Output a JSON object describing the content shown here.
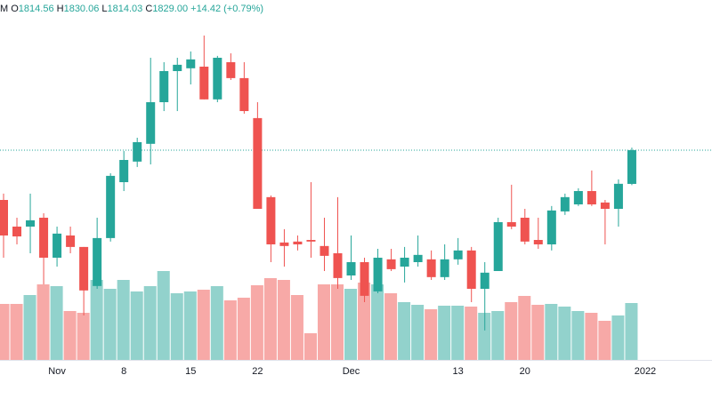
{
  "header": {
    "symbol_fragment": "M",
    "open_label": "O",
    "open": "1814.56",
    "high_label": "H",
    "high": "1830.06",
    "low_label": "L",
    "low": "1814.03",
    "close_label": "C",
    "close": "1829.00",
    "change": "+14.42 (+0.79%)"
  },
  "chart_data": {
    "type": "candlestick",
    "open": [
      1807.7,
      1796.3,
      1796.3,
      1800.1,
      1783.0,
      1792.5,
      1787.6,
      1770.9,
      1791.4,
      1815.3,
      1824.1,
      1831.7,
      1849.5,
      1862.8,
      1864.0,
      1864.7,
      1850.7,
      1866.6,
      1859.8,
      1842.7,
      1808.9,
      1789.5,
      1789.9,
      1790.6,
      1788.0,
      1784.9,
      1775.4,
      1781.1,
      1768.6,
      1782.3,
      1779.2,
      1781.1,
      1782.3,
      1774.7,
      1782.3,
      1786.1,
      1769.7,
      1777.3,
      1798.2,
      1800.1,
      1790.6,
      1788.7,
      1802.8,
      1805.8,
      1811.5,
      1806.6,
      1803.9,
      1814.56
    ],
    "high": [
      1810.4,
      1800.1,
      1810.4,
      1802.0,
      1796.3,
      1796.3,
      1787.6,
      1800.1,
      1819.1,
      1828.6,
      1834.3,
      1868.5,
      1866.6,
      1868.5,
      1871.2,
      1878.0,
      1869.3,
      1870.4,
      1866.6,
      1849.5,
      1809.6,
      1795.2,
      1792.5,
      1815.3,
      1800.1,
      1808.9,
      1792.5,
      1783.0,
      1786.8,
      1786.8,
      1787.6,
      1792.5,
      1786.1,
      1788.7,
      1791.4,
      1787.6,
      1781.1,
      1800.1,
      1814.2,
      1803.9,
      1800.1,
      1805.1,
      1810.4,
      1812.7,
      1820.3,
      1807.7,
      1816.5,
      1830.06
    ],
    "low": [
      1783.0,
      1788.7,
      1784.9,
      1771.6,
      1779.2,
      1784.9,
      1758.3,
      1769.7,
      1789.9,
      1811.5,
      1821.8,
      1822.9,
      1845.7,
      1845.7,
      1857.1,
      1850.7,
      1849.5,
      1859.0,
      1844.6,
      1803.9,
      1781.1,
      1779.2,
      1786.1,
      1783.0,
      1777.3,
      1769.7,
      1773.5,
      1764.0,
      1767.8,
      1777.3,
      1772.4,
      1779.2,
      1773.5,
      1773.5,
      1780.0,
      1764.0,
      1751.9,
      1777.3,
      1795.2,
      1788.7,
      1786.8,
      1786.1,
      1801.3,
      1805.1,
      1805.1,
      1788.7,
      1796.3,
      1814.03
    ],
    "close": [
      1792.5,
      1792.1,
      1799.0,
      1783.0,
      1793.3,
      1787.6,
      1769.0,
      1791.4,
      1818.0,
      1824.8,
      1832.4,
      1849.5,
      1862.8,
      1865.5,
      1867.8,
      1850.7,
      1868.5,
      1859.8,
      1845.7,
      1803.9,
      1788.7,
      1788.0,
      1788.7,
      1789.9,
      1783.8,
      1774.3,
      1781.1,
      1766.7,
      1783.0,
      1778.1,
      1783.0,
      1784.2,
      1774.7,
      1782.3,
      1786.1,
      1769.7,
      1776.6,
      1798.2,
      1796.3,
      1789.9,
      1788.7,
      1803.2,
      1808.9,
      1811.5,
      1805.8,
      1803.9,
      1814.6,
      1829.0
    ],
    "volume": [
      63,
      63,
      73,
      85,
      83,
      55,
      53,
      90,
      80,
      90,
      77,
      83,
      100,
      75,
      77,
      79,
      83,
      67,
      70,
      84,
      92,
      90,
      73,
      30,
      85,
      85,
      80,
      87,
      85,
      75,
      65,
      62,
      57,
      61,
      61,
      60,
      53,
      55,
      65,
      72,
      62,
      63,
      60,
      55,
      53,
      44,
      50,
      64
    ],
    "up_color": "#26a69a",
    "down_color": "#ef5350",
    "ylim": [
      1739.3,
      1893.2
    ],
    "y2lim": [
      0,
      405
    ],
    "x_labels": [
      {
        "value": 4,
        "label": "Nov"
      },
      {
        "value": 9,
        "label": "8"
      },
      {
        "value": 14,
        "label": "15"
      },
      {
        "value": 19,
        "label": "22"
      },
      {
        "value": 26,
        "label": "Dec"
      },
      {
        "value": 34,
        "label": "13"
      },
      {
        "value": 39,
        "label": "20"
      },
      {
        "value": 48,
        "label": "2022"
      }
    ],
    "price_line": true
  }
}
